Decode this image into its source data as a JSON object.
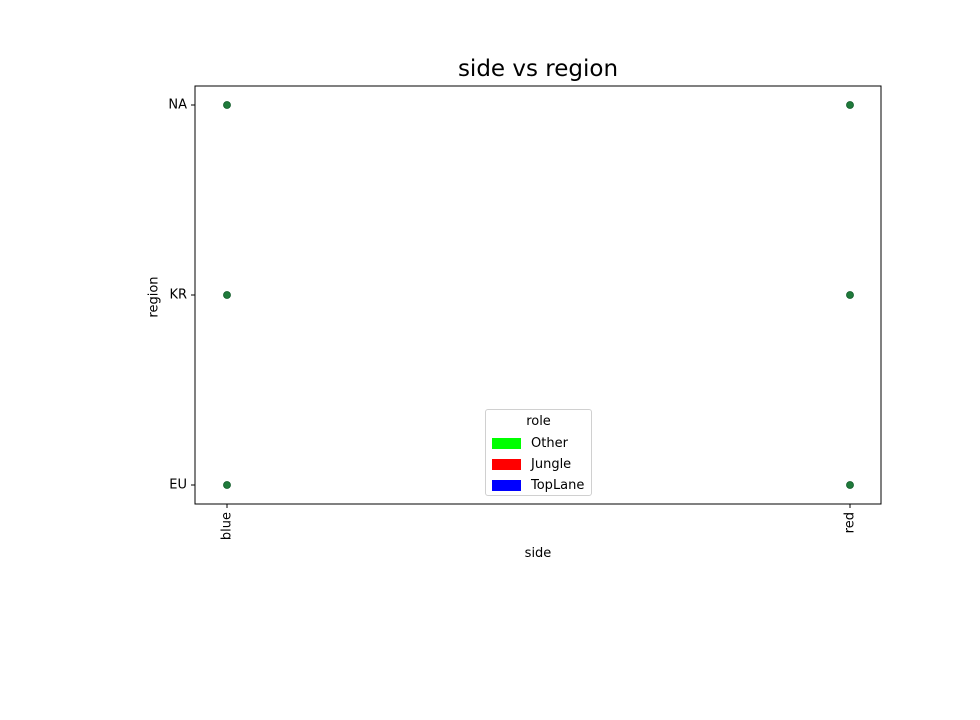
{
  "chart_data": {
    "type": "scatter",
    "title": "side vs region",
    "xlabel": "side",
    "ylabel": "region",
    "x_categories": [
      "blue",
      "red"
    ],
    "y_categories": [
      "EU",
      "KR",
      "NA"
    ],
    "grid": false,
    "legend": {
      "title": "role",
      "placement": "lower center",
      "entries": [
        {
          "label": "Other",
          "color": "#00ff00"
        },
        {
          "label": "Jungle",
          "color": "#ff0000"
        },
        {
          "label": "TopLane",
          "color": "#0000ff"
        }
      ]
    },
    "points": [
      {
        "x": "blue",
        "y": "NA"
      },
      {
        "x": "blue",
        "y": "KR"
      },
      {
        "x": "blue",
        "y": "EU"
      },
      {
        "x": "red",
        "y": "NA"
      },
      {
        "x": "red",
        "y": "KR"
      },
      {
        "x": "red",
        "y": "EU"
      }
    ],
    "point_color": "#1f7a3a"
  }
}
